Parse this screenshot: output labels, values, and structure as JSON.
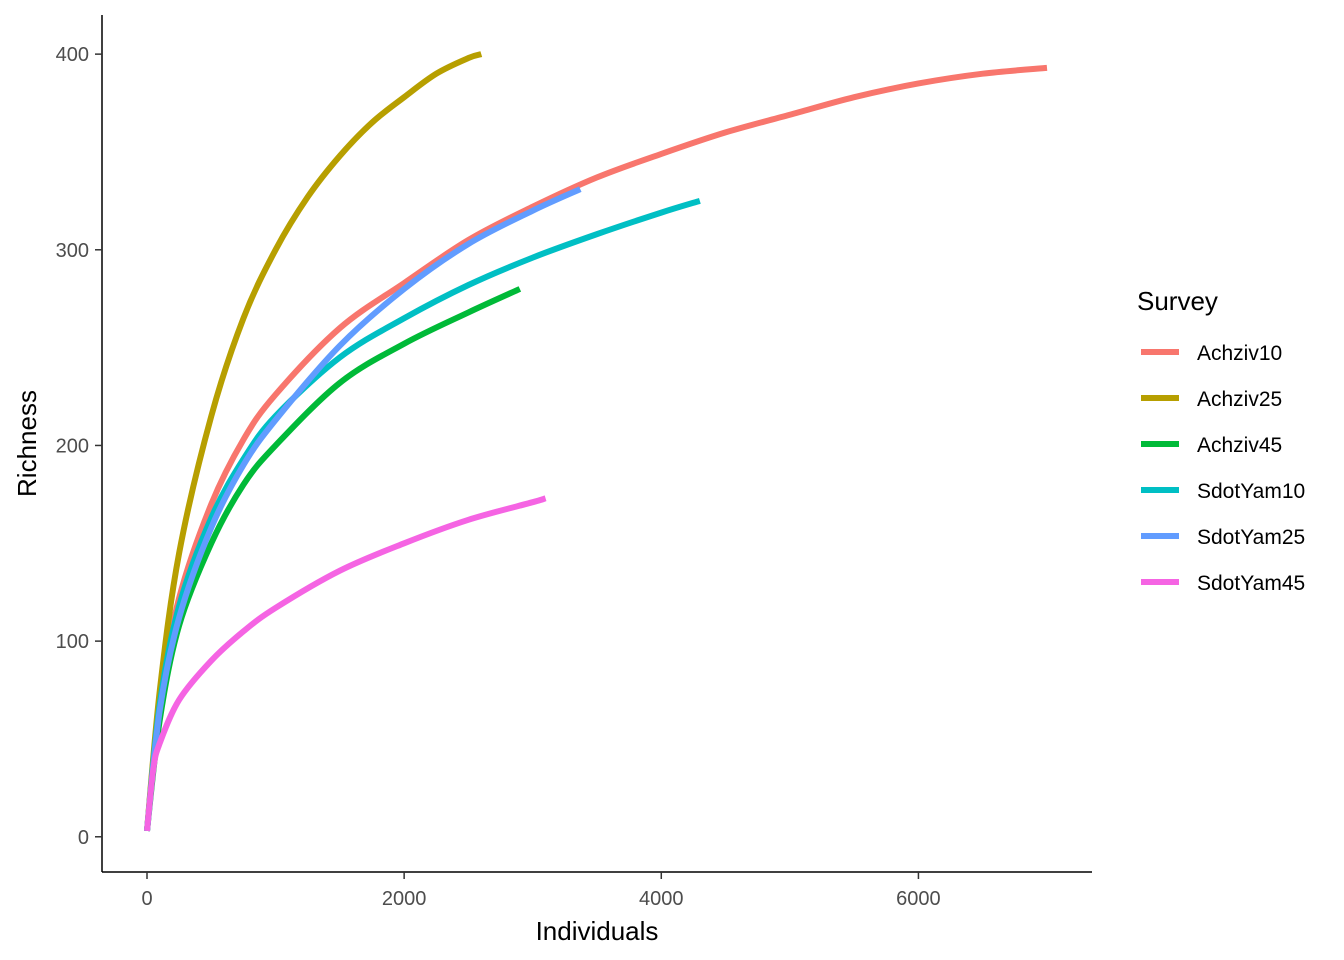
{
  "chart_data": {
    "type": "line",
    "title": "",
    "xlabel": "Individuals",
    "ylabel": "Richness",
    "xlim": [
      -350,
      7350
    ],
    "ylim": [
      -18,
      420
    ],
    "x_ticks": [
      0,
      2000,
      4000,
      6000
    ],
    "x_tick_labels": [
      "0",
      "2000",
      "4000",
      "6000"
    ],
    "y_ticks": [
      0,
      100,
      200,
      300,
      400
    ],
    "y_tick_labels": [
      "0",
      "100",
      "200",
      "300",
      "400"
    ],
    "grid": false,
    "legend": {
      "title": "Survey",
      "position": "right"
    },
    "series": [
      {
        "name": "Achziv10",
        "color": "#F8766D",
        "points": [
          [
            0,
            3
          ],
          [
            100,
            70
          ],
          [
            250,
            122
          ],
          [
            500,
            170
          ],
          [
            750,
            203
          ],
          [
            1000,
            226
          ],
          [
            1500,
            260
          ],
          [
            2000,
            283
          ],
          [
            2500,
            305
          ],
          [
            3000,
            322
          ],
          [
            3500,
            337
          ],
          [
            4000,
            349
          ],
          [
            4500,
            360
          ],
          [
            5000,
            369
          ],
          [
            5500,
            378
          ],
          [
            6000,
            385
          ],
          [
            6500,
            390
          ],
          [
            7000,
            393
          ]
        ]
      },
      {
        "name": "Achziv25",
        "color": "#B79F00",
        "points": [
          [
            0,
            3
          ],
          [
            100,
            75
          ],
          [
            250,
            145
          ],
          [
            500,
            215
          ],
          [
            750,
            265
          ],
          [
            1000,
            300
          ],
          [
            1250,
            327
          ],
          [
            1500,
            348
          ],
          [
            1750,
            365
          ],
          [
            2000,
            378
          ],
          [
            2250,
            390
          ],
          [
            2500,
            398
          ],
          [
            2600,
            400
          ]
        ]
      },
      {
        "name": "Achziv45",
        "color": "#00BA38",
        "points": [
          [
            0,
            3
          ],
          [
            100,
            60
          ],
          [
            250,
            108
          ],
          [
            500,
            150
          ],
          [
            750,
            180
          ],
          [
            1000,
            200
          ],
          [
            1500,
            232
          ],
          [
            2000,
            252
          ],
          [
            2500,
            268
          ],
          [
            2900,
            280
          ]
        ]
      },
      {
        "name": "SdotYam10",
        "color": "#00BFC4",
        "points": [
          [
            0,
            3
          ],
          [
            100,
            68
          ],
          [
            250,
            118
          ],
          [
            500,
            163
          ],
          [
            750,
            193
          ],
          [
            1000,
            215
          ],
          [
            1500,
            245
          ],
          [
            2000,
            265
          ],
          [
            2500,
            282
          ],
          [
            3000,
            296
          ],
          [
            3500,
            308
          ],
          [
            4000,
            319
          ],
          [
            4300,
            325
          ]
        ]
      },
      {
        "name": "SdotYam25",
        "color": "#619CFF",
        "points": [
          [
            0,
            3
          ],
          [
            100,
            65
          ],
          [
            250,
            112
          ],
          [
            500,
            158
          ],
          [
            750,
            190
          ],
          [
            1000,
            213
          ],
          [
            1500,
            251
          ],
          [
            2000,
            280
          ],
          [
            2500,
            303
          ],
          [
            3000,
            320
          ],
          [
            3370,
            331
          ]
        ]
      },
      {
        "name": "SdotYam45",
        "color": "#F564E3",
        "points": [
          [
            0,
            3
          ],
          [
            50,
            35
          ],
          [
            100,
            48
          ],
          [
            250,
            70
          ],
          [
            500,
            90
          ],
          [
            750,
            105
          ],
          [
            1000,
            117
          ],
          [
            1500,
            136
          ],
          [
            2000,
            150
          ],
          [
            2500,
            162
          ],
          [
            3000,
            171
          ],
          [
            3100,
            173
          ]
        ]
      }
    ]
  }
}
